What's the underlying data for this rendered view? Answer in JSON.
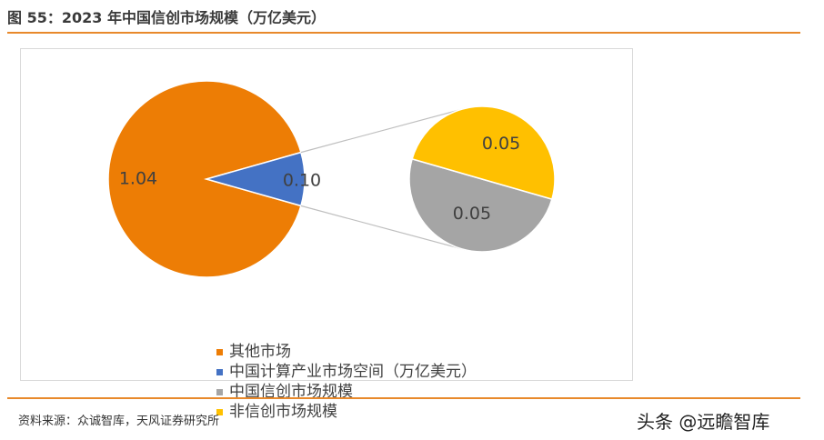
{
  "figure_title": "图 55：2023 年中国信创市场规模（万亿美元）",
  "source_note": "资料来源：众诚智库，天风证券研究所",
  "watermark": "头条 @远瞻智库",
  "chart_data": {
    "type": "pie",
    "subtype": "pie-of-pie",
    "main_pie": {
      "slices": [
        {
          "label": "其他市场",
          "value": 1.04,
          "value_label": "1.04",
          "color": "#ED7D05"
        },
        {
          "label": "中国计算产业市场空间（万亿美元）",
          "value": 0.1,
          "value_label": "0.10",
          "color": "#4472C4"
        }
      ]
    },
    "secondary_pie": {
      "slices": [
        {
          "label": "中国信创市场规模",
          "value": 0.05,
          "value_label": "0.05",
          "color": "#A5A5A5"
        },
        {
          "label": "非信创市场规模",
          "value": 0.05,
          "value_label": "0.05",
          "color": "#FFC000"
        }
      ]
    },
    "legend": [
      {
        "label": "其他市场",
        "color": "#ED7D05"
      },
      {
        "label": "中国计算产业市场空间（万亿美元）",
        "color": "#4472C4"
      },
      {
        "label": "中国信创市场规模",
        "color": "#A5A5A5"
      },
      {
        "label": "非信创市场规模",
        "color": "#FFC000"
      }
    ],
    "legend_position": "bottom"
  }
}
